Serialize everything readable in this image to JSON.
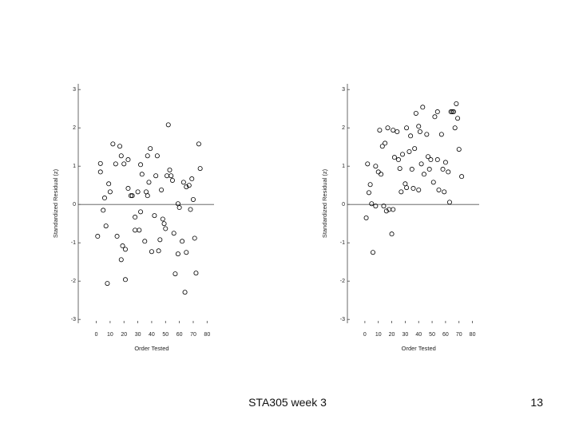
{
  "chart_data": [
    {
      "type": "scatter",
      "xlabel": "Order Tested",
      "ylabel": "Standardized Residual (z)",
      "xlim": [
        -13,
        85
      ],
      "ylim": [
        -3.1,
        3.15
      ],
      "xticks": [
        0,
        10,
        20,
        30,
        40,
        50,
        60,
        70,
        80
      ],
      "yticks": [
        -3,
        -2,
        -1,
        0,
        1,
        2,
        3
      ],
      "reference_line": 0,
      "color": "#000000",
      "x": [
        3,
        3,
        5,
        1,
        6,
        7,
        8,
        9,
        10,
        12,
        14,
        15,
        17,
        18,
        20,
        19,
        18,
        21,
        21,
        23,
        23,
        25,
        26,
        28,
        28,
        30,
        31,
        32,
        32,
        33,
        35,
        36,
        37,
        37,
        38,
        39,
        40,
        42,
        43,
        44,
        45,
        46,
        47,
        48,
        49,
        50,
        51,
        52,
        53,
        54,
        55,
        56,
        57,
        59,
        59,
        60,
        62,
        63,
        64,
        65,
        65,
        67,
        68,
        69,
        70,
        71,
        72,
        74,
        75
      ],
      "values": [
        0.85,
        1.07,
        -0.15,
        -0.83,
        0.17,
        -0.56,
        -2.06,
        0.54,
        0.33,
        1.58,
        1.06,
        -0.83,
        1.52,
        1.27,
        1.06,
        -1.08,
        -1.44,
        -1.17,
        -1.96,
        1.17,
        0.42,
        0.23,
        0.23,
        -0.67,
        -0.33,
        0.33,
        -0.67,
        -0.19,
        1.04,
        0.79,
        -0.96,
        0.33,
        0.23,
        1.27,
        0.58,
        1.46,
        -1.23,
        -0.29,
        0.75,
        1.27,
        -1.21,
        -0.92,
        0.38,
        -0.38,
        -0.5,
        -0.63,
        0.75,
        2.08,
        0.9,
        0.75,
        0.63,
        -0.75,
        -1.81,
        0.02,
        -1.29,
        -0.08,
        -0.96,
        0.58,
        -2.29,
        -1.25,
        0.46,
        0.5,
        -0.13,
        0.67,
        0.13,
        -0.88,
        -1.79,
        1.58,
        0.94
      ]
    },
    {
      "type": "scatter",
      "xlabel": "Order Tested",
      "ylabel": "Standardized Residual (z)",
      "xlim": [
        -13,
        85
      ],
      "ylim": [
        -3.1,
        3.15
      ],
      "xticks": [
        0,
        10,
        20,
        30,
        40,
        50,
        60,
        70,
        80
      ],
      "yticks": [
        -3,
        -2,
        -1,
        0,
        1,
        2,
        3
      ],
      "reference_line": 0,
      "color": "#000000",
      "x": [
        1,
        2,
        3,
        4,
        5,
        6,
        8,
        8,
        10,
        11,
        12,
        13,
        14,
        15,
        16,
        17,
        18,
        20,
        21,
        21,
        22,
        24,
        25,
        26,
        27,
        28,
        30,
        31,
        31,
        33,
        34,
        35,
        36,
        37,
        38,
        40,
        40,
        41,
        42,
        43,
        44,
        46,
        47,
        48,
        49,
        51,
        52,
        54,
        54,
        55,
        57,
        58,
        59,
        60,
        62,
        63,
        64,
        65,
        66,
        67,
        68,
        69,
        70,
        72
      ],
      "values": [
        -0.35,
        1.06,
        0.31,
        0.52,
        0.02,
        -1.25,
        -0.04,
        1.0,
        0.85,
        1.94,
        0.79,
        1.52,
        -0.04,
        1.6,
        -0.17,
        2.0,
        -0.13,
        -0.77,
        1.94,
        -0.13,
        1.23,
        1.9,
        1.17,
        0.94,
        0.33,
        1.31,
        0.54,
        2.0,
        0.44,
        1.38,
        1.79,
        0.92,
        0.42,
        1.46,
        2.38,
        0.38,
        2.04,
        1.9,
        1.06,
        2.54,
        0.79,
        1.83,
        1.25,
        0.92,
        1.17,
        0.58,
        2.29,
        2.42,
        1.17,
        0.38,
        1.83,
        0.92,
        0.33,
        1.1,
        0.85,
        0.06,
        2.42,
        2.42,
        2.42,
        2.0,
        2.63,
        2.25,
        1.44,
        0.73
      ]
    }
  ],
  "footer": "STA305 week 3",
  "page_number": "13"
}
